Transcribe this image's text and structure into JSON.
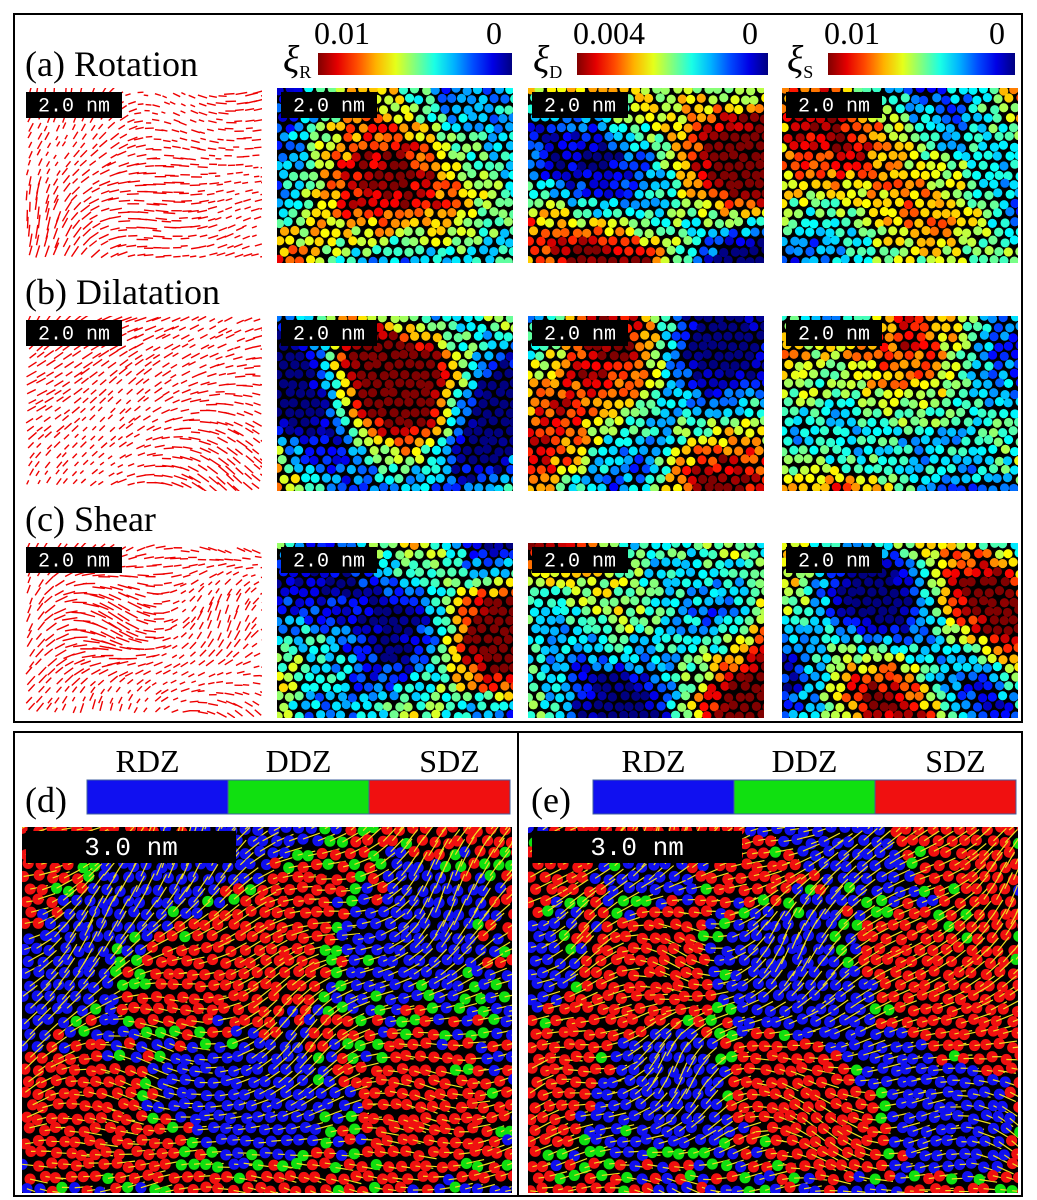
{
  "rows": [
    {
      "label": "(a) Rotation"
    },
    {
      "label": "(b) Dilatation"
    },
    {
      "label": "(c) Shear"
    }
  ],
  "scale_bar_small": "2.0 nm",
  "colorbars": [
    {
      "symbol": "ξ",
      "subscript": "R",
      "max": "0.01",
      "min": "0"
    },
    {
      "symbol": "ξ",
      "subscript": "D",
      "max": "0.004",
      "min": "0"
    },
    {
      "symbol": "ξ",
      "subscript": "S",
      "max": "0.01",
      "min": "0"
    }
  ],
  "lower_panels": [
    {
      "label": "(d)"
    },
    {
      "label": "(e)"
    }
  ],
  "legend": [
    "RDZ",
    "DDZ",
    "SDZ"
  ],
  "scale_bar_large": "3.0 nm"
}
